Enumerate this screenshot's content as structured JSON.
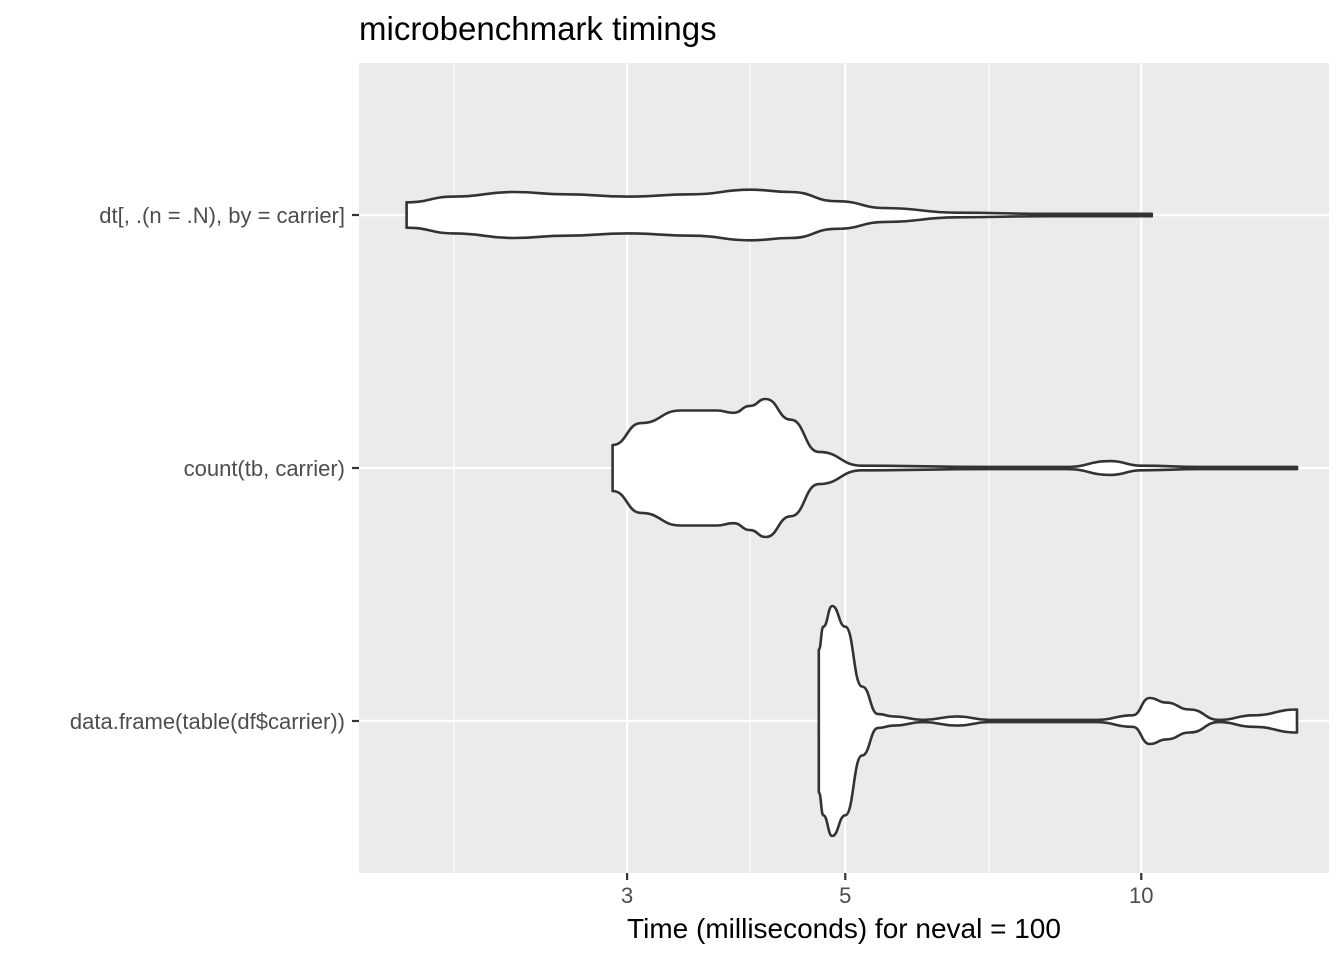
{
  "chart_data": {
    "type": "violin",
    "title": "microbenchmark timings",
    "xlabel": "Time (milliseconds) for neval = 100",
    "ylabel": "",
    "x_scale": "log10",
    "xlim": [
      1.73,
      14.4
    ],
    "x_ticks": [
      3,
      5,
      10
    ],
    "x_minor_ticks": [
      2,
      4,
      7
    ],
    "grid": true,
    "panel_color": "#ebebeb",
    "violin_fill": "#ffffff",
    "violin_stroke": "#333333",
    "series": [
      {
        "name": "dt[, .(n = .N), by = carrier]",
        "min": 1.79,
        "max": 10.25,
        "density": [
          [
            1.79,
            0.11
          ],
          [
            2.0,
            0.16
          ],
          [
            2.3,
            0.2
          ],
          [
            2.6,
            0.18
          ],
          [
            3.0,
            0.16
          ],
          [
            3.5,
            0.18
          ],
          [
            4.0,
            0.22
          ],
          [
            4.4,
            0.2
          ],
          [
            4.9,
            0.12
          ],
          [
            5.5,
            0.06
          ],
          [
            6.5,
            0.02
          ],
          [
            8.0,
            0.01
          ],
          [
            10.25,
            0.01
          ]
        ]
      },
      {
        "name": "count(tb, carrier)",
        "min": 2.9,
        "max": 14.4,
        "density": [
          [
            2.9,
            0.2
          ],
          [
            3.1,
            0.39
          ],
          [
            3.4,
            0.5
          ],
          [
            3.7,
            0.5
          ],
          [
            3.85,
            0.48
          ],
          [
            4.0,
            0.54
          ],
          [
            4.15,
            0.6
          ],
          [
            4.4,
            0.42
          ],
          [
            4.7,
            0.14
          ],
          [
            5.2,
            0.02
          ],
          [
            7.0,
            0.01
          ],
          [
            8.4,
            0.01
          ],
          [
            9.3,
            0.06
          ],
          [
            10.0,
            0.02
          ],
          [
            11.5,
            0.01
          ],
          [
            14.4,
            0.01
          ]
        ]
      },
      {
        "name": "data.frame(table(df$carrier))",
        "min": 4.7,
        "max": 14.4,
        "density": [
          [
            4.7,
            0.62
          ],
          [
            4.75,
            0.82
          ],
          [
            4.85,
            1.0
          ],
          [
            5.0,
            0.82
          ],
          [
            5.2,
            0.3
          ],
          [
            5.4,
            0.06
          ],
          [
            5.6,
            0.04
          ],
          [
            6.0,
            0.01
          ],
          [
            6.5,
            0.04
          ],
          [
            7.0,
            0.01
          ],
          [
            9.0,
            0.01
          ],
          [
            9.8,
            0.05
          ],
          [
            10.2,
            0.2
          ],
          [
            10.6,
            0.16
          ],
          [
            11.2,
            0.1
          ],
          [
            12.0,
            0.01
          ],
          [
            13.0,
            0.05
          ],
          [
            14.4,
            0.1
          ]
        ]
      }
    ]
  }
}
